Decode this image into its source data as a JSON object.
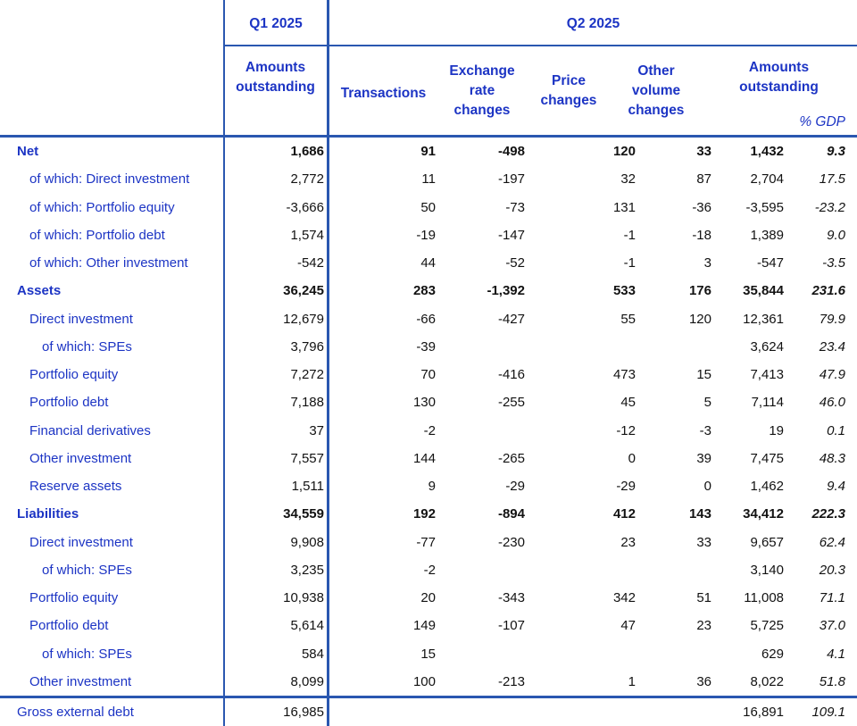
{
  "header": {
    "q1_label": "Q1 2025",
    "q2_label": "Q2 2025",
    "columns": {
      "q1_amounts": "Amounts\noutstanding",
      "transactions": "Transactions",
      "exchange_rate_changes": "Exchange\nrate\nchanges",
      "price_changes": "Price\nchanges",
      "other_volume_changes": "Other\nvolume\nchanges",
      "q2_amounts": "Amounts\noutstanding",
      "pct_gdp": "% GDP"
    }
  },
  "colors": {
    "text_blue": "#1c34c4",
    "line_blue": "#2a57b0",
    "number_black": "#121212"
  },
  "table": {
    "column_order": [
      "q1_amounts_outstanding",
      "transactions",
      "exchange_rate_changes",
      "price_changes",
      "other_volume_changes",
      "q2_amounts_outstanding",
      "pct_gdp"
    ],
    "rows": [
      {
        "label": "Net",
        "indent": 0,
        "bold": true,
        "values": [
          "1,686",
          "91",
          "-498",
          "120",
          "33",
          "1,432",
          "9.3"
        ]
      },
      {
        "label": "of which: Direct investment",
        "indent": 1,
        "bold": false,
        "values": [
          "2,772",
          "11",
          "-197",
          "32",
          "87",
          "2,704",
          "17.5"
        ]
      },
      {
        "label": "of which: Portfolio equity",
        "indent": 1,
        "bold": false,
        "values": [
          "-3,666",
          "50",
          "-73",
          "131",
          "-36",
          "-3,595",
          "-23.2"
        ]
      },
      {
        "label": "of which: Portfolio debt",
        "indent": 1,
        "bold": false,
        "values": [
          "1,574",
          "-19",
          "-147",
          "-1",
          "-18",
          "1,389",
          "9.0"
        ]
      },
      {
        "label": "of which: Other investment",
        "indent": 1,
        "bold": false,
        "values": [
          "-542",
          "44",
          "-52",
          "-1",
          "3",
          "-547",
          "-3.5"
        ]
      },
      {
        "label": "Assets",
        "indent": 0,
        "bold": true,
        "values": [
          "36,245",
          "283",
          "-1,392",
          "533",
          "176",
          "35,844",
          "231.6"
        ]
      },
      {
        "label": "Direct investment",
        "indent": 1,
        "bold": false,
        "values": [
          "12,679",
          "-66",
          "-427",
          "55",
          "120",
          "12,361",
          "79.9"
        ]
      },
      {
        "label": "of which: SPEs",
        "indent": 2,
        "bold": false,
        "values": [
          "3,796",
          "-39",
          "",
          "",
          "",
          "3,624",
          "23.4"
        ]
      },
      {
        "label": "Portfolio equity",
        "indent": 1,
        "bold": false,
        "values": [
          "7,272",
          "70",
          "-416",
          "473",
          "15",
          "7,413",
          "47.9"
        ]
      },
      {
        "label": "Portfolio debt",
        "indent": 1,
        "bold": false,
        "values": [
          "7,188",
          "130",
          "-255",
          "45",
          "5",
          "7,114",
          "46.0"
        ]
      },
      {
        "label": "Financial derivatives",
        "indent": 1,
        "bold": false,
        "values": [
          "37",
          "-2",
          "",
          "-12",
          "-3",
          "19",
          "0.1"
        ]
      },
      {
        "label": "Other investment",
        "indent": 1,
        "bold": false,
        "values": [
          "7,557",
          "144",
          "-265",
          "0",
          "39",
          "7,475",
          "48.3"
        ]
      },
      {
        "label": "Reserve assets",
        "indent": 1,
        "bold": false,
        "values": [
          "1,511",
          "9",
          "-29",
          "-29",
          "0",
          "1,462",
          "9.4"
        ]
      },
      {
        "label": "Liabilities",
        "indent": 0,
        "bold": true,
        "values": [
          "34,559",
          "192",
          "-894",
          "412",
          "143",
          "34,412",
          "222.3"
        ]
      },
      {
        "label": "Direct investment",
        "indent": 1,
        "bold": false,
        "values": [
          "9,908",
          "-77",
          "-230",
          "23",
          "33",
          "9,657",
          "62.4"
        ]
      },
      {
        "label": "of which: SPEs",
        "indent": 2,
        "bold": false,
        "values": [
          "3,235",
          "-2",
          "",
          "",
          "",
          "3,140",
          "20.3"
        ]
      },
      {
        "label": "Portfolio equity",
        "indent": 1,
        "bold": false,
        "values": [
          "10,938",
          "20",
          "-343",
          "342",
          "51",
          "11,008",
          "71.1"
        ]
      },
      {
        "label": "Portfolio debt",
        "indent": 1,
        "bold": false,
        "values": [
          "5,614",
          "149",
          "-107",
          "47",
          "23",
          "5,725",
          "37.0"
        ]
      },
      {
        "label": "of which: SPEs",
        "indent": 2,
        "bold": false,
        "values": [
          "584",
          "15",
          "",
          "",
          "",
          "629",
          "4.1"
        ]
      },
      {
        "label": "Other investment",
        "indent": 1,
        "bold": false,
        "values": [
          "8,099",
          "100",
          "-213",
          "1",
          "36",
          "8,022",
          "51.8"
        ]
      },
      {
        "label": "Gross external debt",
        "indent": 0,
        "bold": false,
        "footer": true,
        "values": [
          "16,985",
          "",
          "",
          "",
          "",
          "16,891",
          "109.1"
        ]
      }
    ]
  }
}
